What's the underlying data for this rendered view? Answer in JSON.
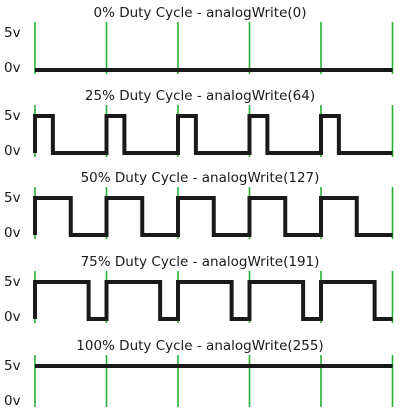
{
  "figure": {
    "level_high_label": "5v",
    "level_low_label": "0v",
    "colors": {
      "waveform": "#1a1a1a",
      "period_marker": "#27b034",
      "background": "#ffffff"
    },
    "periods": 5,
    "panels": [
      {
        "title": "0% Duty Cycle - analogWrite(0)",
        "duty": 0.0
      },
      {
        "title": "25% Duty Cycle - analogWrite(64)",
        "duty": 0.25
      },
      {
        "title": "50% Duty Cycle - analogWrite(127)",
        "duty": 0.5
      },
      {
        "title": "75% Duty Cycle - analogWrite(191)",
        "duty": 0.75
      },
      {
        "title": "100% Duty Cycle - analogWrite(255)",
        "duty": 1.0
      }
    ]
  }
}
